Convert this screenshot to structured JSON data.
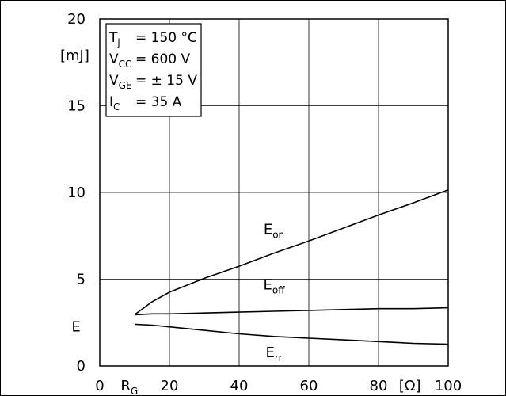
{
  "chart_data": {
    "type": "line",
    "title": "",
    "xlabel": {
      "main": "R",
      "sub": "G",
      "unit": "[Ω]"
    },
    "ylabel": {
      "main": "E",
      "unit": "[mJ]"
    },
    "xlim": [
      0,
      100
    ],
    "ylim": [
      0,
      20
    ],
    "x_ticks": [
      0,
      20,
      40,
      60,
      80,
      100
    ],
    "y_ticks": [
      0,
      5,
      10,
      15,
      20
    ],
    "grid": true,
    "conditions": [
      {
        "sym": "T",
        "sub": "j",
        "val": "= 150 °C"
      },
      {
        "sym": "V",
        "sub": "CC",
        "val": "= 600 V"
      },
      {
        "sym": "V",
        "sub": "GE",
        "val": "= ± 15 V"
      },
      {
        "sym": "I",
        "sub": "C",
        "val": "= 35 A"
      }
    ],
    "series": [
      {
        "name": "E_on",
        "label_main": "E",
        "label_sub": "on",
        "label_at": [
          50,
          7.6
        ],
        "x": [
          10,
          15,
          20,
          30,
          40,
          50,
          60,
          70,
          80,
          90,
          100
        ],
        "y": [
          2.95,
          3.7,
          4.25,
          5.05,
          5.75,
          6.5,
          7.2,
          7.95,
          8.7,
          9.4,
          10.15
        ]
      },
      {
        "name": "E_off",
        "label_main": "E",
        "label_sub": "off",
        "label_at": [
          50,
          4.4
        ],
        "x": [
          10,
          15,
          20,
          30,
          40,
          50,
          60,
          70,
          80,
          90,
          100
        ],
        "y": [
          2.95,
          3.0,
          3.0,
          3.05,
          3.1,
          3.15,
          3.2,
          3.25,
          3.3,
          3.3,
          3.35
        ]
      },
      {
        "name": "E_rr",
        "label_main": "E",
        "label_sub": "rr",
        "label_at": [
          50,
          0.5
        ],
        "x": [
          10,
          15,
          20,
          30,
          40,
          50,
          60,
          70,
          80,
          90,
          100
        ],
        "y": [
          2.4,
          2.35,
          2.25,
          2.05,
          1.85,
          1.7,
          1.6,
          1.5,
          1.4,
          1.3,
          1.25
        ]
      }
    ]
  }
}
